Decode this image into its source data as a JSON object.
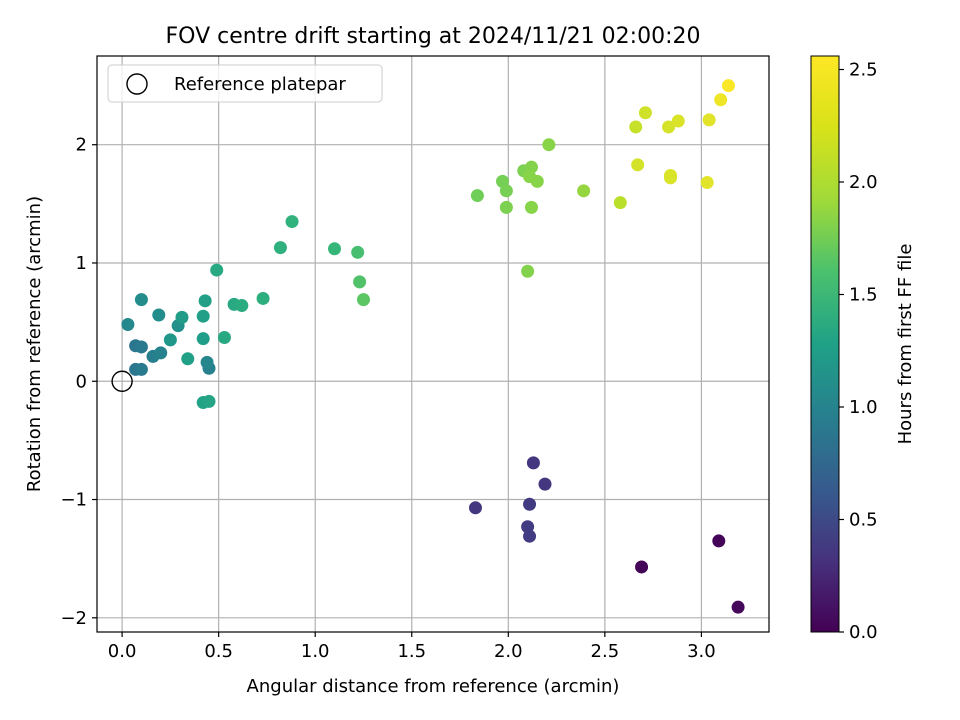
{
  "chart_data": {
    "type": "scatter",
    "title": "FOV centre drift starting at 2024/11/21 02:00:20",
    "xlabel": "Angular distance from reference (arcmin)",
    "ylabel": "Rotation from reference (arcmin)",
    "xlim": [
      -0.13,
      3.35
    ],
    "ylim": [
      -2.12,
      2.75
    ],
    "x_ticks": [
      0.0,
      0.5,
      1.0,
      1.5,
      2.0,
      2.5,
      3.0
    ],
    "x_tick_labels": [
      "0.0",
      "0.5",
      "1.0",
      "1.5",
      "2.0",
      "2.5",
      "3.0"
    ],
    "y_ticks": [
      -2,
      -1,
      0,
      1,
      2
    ],
    "y_tick_labels": [
      "−2",
      "−1",
      "0",
      "1",
      "2"
    ],
    "grid": true,
    "legend": {
      "placement": "upper-left",
      "entries": [
        "Reference platepar"
      ]
    },
    "reference_point": {
      "x": 0.0,
      "y": 0.0
    },
    "colorbar": {
      "label": "Hours from first FF file",
      "colormap": "viridis",
      "range": [
        0.0,
        2.56
      ],
      "ticks": [
        0.0,
        0.5,
        1.0,
        1.5,
        2.0,
        2.5
      ],
      "tick_labels": [
        "0.0",
        "0.5",
        "1.0",
        "1.5",
        "2.0",
        "2.5"
      ]
    },
    "points": [
      {
        "x": 2.69,
        "y": -1.57,
        "c": 0.02
      },
      {
        "x": 3.09,
        "y": -1.35,
        "c": 0.03
      },
      {
        "x": 3.19,
        "y": -1.91,
        "c": 0.05
      },
      {
        "x": 2.13,
        "y": -0.69,
        "c": 0.4
      },
      {
        "x": 2.19,
        "y": -0.87,
        "c": 0.4
      },
      {
        "x": 1.83,
        "y": -1.07,
        "c": 0.42
      },
      {
        "x": 2.11,
        "y": -1.04,
        "c": 0.44
      },
      {
        "x": 2.1,
        "y": -1.23,
        "c": 0.45
      },
      {
        "x": 2.11,
        "y": -1.31,
        "c": 0.46
      },
      {
        "x": 0.07,
        "y": 0.3,
        "c": 1.0
      },
      {
        "x": 0.07,
        "y": 0.1,
        "c": 1.0
      },
      {
        "x": 0.1,
        "y": 0.1,
        "c": 1.05
      },
      {
        "x": 0.1,
        "y": 0.29,
        "c": 1.05
      },
      {
        "x": 0.16,
        "y": 0.21,
        "c": 1.1
      },
      {
        "x": 0.2,
        "y": 0.24,
        "c": 1.15
      },
      {
        "x": 0.45,
        "y": 0.11,
        "c": 1.12
      },
      {
        "x": 0.44,
        "y": 0.16,
        "c": 1.18
      },
      {
        "x": 0.03,
        "y": 0.48,
        "c": 1.2
      },
      {
        "x": 0.1,
        "y": 0.69,
        "c": 1.25
      },
      {
        "x": 0.19,
        "y": 0.56,
        "c": 1.25
      },
      {
        "x": 0.29,
        "y": 0.47,
        "c": 1.28
      },
      {
        "x": 0.25,
        "y": 0.35,
        "c": 1.35
      },
      {
        "x": 0.31,
        "y": 0.54,
        "c": 1.4
      },
      {
        "x": 0.34,
        "y": 0.19,
        "c": 1.45
      },
      {
        "x": 0.42,
        "y": 0.36,
        "c": 1.42
      },
      {
        "x": 0.42,
        "y": 0.55,
        "c": 1.45
      },
      {
        "x": 0.43,
        "y": 0.68,
        "c": 1.45
      },
      {
        "x": 0.42,
        "y": -0.18,
        "c": 1.48
      },
      {
        "x": 0.45,
        "y": -0.17,
        "c": 1.5
      },
      {
        "x": 0.49,
        "y": 0.94,
        "c": 1.55
      },
      {
        "x": 0.53,
        "y": 0.37,
        "c": 1.55
      },
      {
        "x": 0.58,
        "y": 0.65,
        "c": 1.55
      },
      {
        "x": 0.62,
        "y": 0.64,
        "c": 1.58
      },
      {
        "x": 0.73,
        "y": 0.7,
        "c": 1.6
      },
      {
        "x": 0.82,
        "y": 1.13,
        "c": 1.63
      },
      {
        "x": 0.88,
        "y": 1.35,
        "c": 1.65
      },
      {
        "x": 1.1,
        "y": 1.12,
        "c": 1.7
      },
      {
        "x": 1.22,
        "y": 1.09,
        "c": 1.8
      },
      {
        "x": 1.23,
        "y": 0.84,
        "c": 1.85
      },
      {
        "x": 1.25,
        "y": 0.69,
        "c": 1.9
      },
      {
        "x": 1.84,
        "y": 1.57,
        "c": 2.0
      },
      {
        "x": 1.97,
        "y": 1.69,
        "c": 2.02
      },
      {
        "x": 1.99,
        "y": 1.61,
        "c": 2.03
      },
      {
        "x": 1.99,
        "y": 1.47,
        "c": 2.05
      },
      {
        "x": 2.08,
        "y": 1.78,
        "c": 2.05
      },
      {
        "x": 2.1,
        "y": 0.93,
        "c": 2.08
      },
      {
        "x": 2.12,
        "y": 1.81,
        "c": 2.08
      },
      {
        "x": 2.11,
        "y": 1.73,
        "c": 2.1
      },
      {
        "x": 2.12,
        "y": 1.47,
        "c": 2.1
      },
      {
        "x": 2.15,
        "y": 1.69,
        "c": 2.1
      },
      {
        "x": 2.21,
        "y": 2.0,
        "c": 2.1
      },
      {
        "x": 2.39,
        "y": 1.61,
        "c": 2.15
      },
      {
        "x": 2.58,
        "y": 1.51,
        "c": 2.3
      },
      {
        "x": 2.66,
        "y": 2.15,
        "c": 2.35
      },
      {
        "x": 2.67,
        "y": 1.83,
        "c": 2.4
      },
      {
        "x": 2.71,
        "y": 2.27,
        "c": 2.38
      },
      {
        "x": 2.83,
        "y": 2.15,
        "c": 2.4
      },
      {
        "x": 2.84,
        "y": 1.74,
        "c": 2.42
      },
      {
        "x": 2.84,
        "y": 1.72,
        "c": 2.42
      },
      {
        "x": 2.88,
        "y": 2.2,
        "c": 2.42
      },
      {
        "x": 3.03,
        "y": 1.68,
        "c": 2.45
      },
      {
        "x": 3.04,
        "y": 2.21,
        "c": 2.45
      },
      {
        "x": 3.1,
        "y": 2.38,
        "c": 2.5
      },
      {
        "x": 3.14,
        "y": 2.5,
        "c": 2.55
      }
    ]
  }
}
